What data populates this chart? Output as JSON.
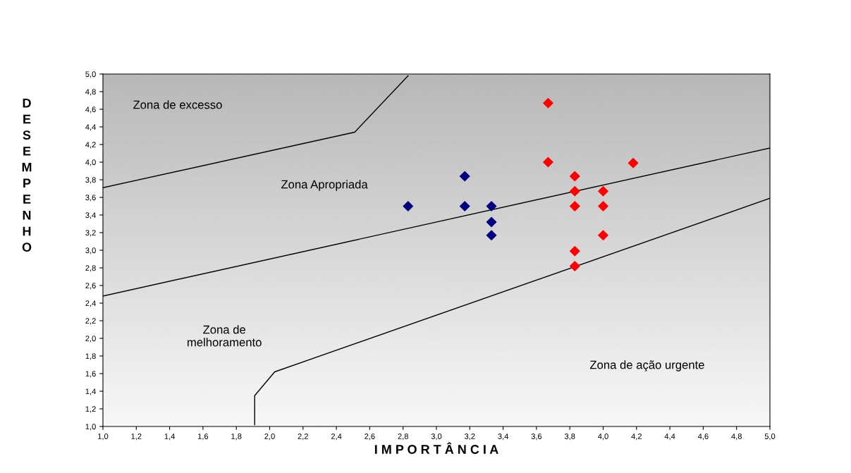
{
  "chart_data": {
    "type": "scatter",
    "xlabel": "I M P O R T Â N C I A",
    "ylabel": "DESEMPENHO",
    "xlim": [
      1.0,
      5.0
    ],
    "ylim": [
      1.0,
      5.0
    ],
    "xticks": [
      {
        "value": 1.0,
        "label": "1,0"
      },
      {
        "value": 1.2,
        "label": "1,2"
      },
      {
        "value": 1.4,
        "label": "1,4"
      },
      {
        "value": 1.6,
        "label": "1,6"
      },
      {
        "value": 1.8,
        "label": "1,8"
      },
      {
        "value": 2.0,
        "label": "2,0"
      },
      {
        "value": 2.2,
        "label": "2,2"
      },
      {
        "value": 2.4,
        "label": "2,4"
      },
      {
        "value": 2.6,
        "label": "2,6"
      },
      {
        "value": 2.8,
        "label": "2,8"
      },
      {
        "value": 3.0,
        "label": "3,0"
      },
      {
        "value": 3.2,
        "label": "3,2"
      },
      {
        "value": 3.4,
        "label": "3,4"
      },
      {
        "value": 3.6,
        "label": "3,6"
      },
      {
        "value": 3.8,
        "label": "3,8"
      },
      {
        "value": 4.0,
        "label": "4,0"
      },
      {
        "value": 4.2,
        "label": "4,2"
      },
      {
        "value": 4.4,
        "label": "4,4"
      },
      {
        "value": 4.6,
        "label": "4,6"
      },
      {
        "value": 4.8,
        "label": "4,8"
      },
      {
        "value": 5.0,
        "label": "5,0"
      }
    ],
    "yticks": [
      {
        "value": 1.0,
        "label": "1,0"
      },
      {
        "value": 1.2,
        "label": "1,2"
      },
      {
        "value": 1.4,
        "label": "1,4"
      },
      {
        "value": 1.6,
        "label": "1,6"
      },
      {
        "value": 1.8,
        "label": "1,8"
      },
      {
        "value": 2.0,
        "label": "2,0"
      },
      {
        "value": 2.2,
        "label": "2,2"
      },
      {
        "value": 2.4,
        "label": "2,4"
      },
      {
        "value": 2.6,
        "label": "2,6"
      },
      {
        "value": 2.8,
        "label": "2,8"
      },
      {
        "value": 3.0,
        "label": "3,0"
      },
      {
        "value": 3.2,
        "label": "3,2"
      },
      {
        "value": 3.4,
        "label": "3,4"
      },
      {
        "value": 3.6,
        "label": "3,6"
      },
      {
        "value": 3.8,
        "label": "3,8"
      },
      {
        "value": 4.0,
        "label": "4,0"
      },
      {
        "value": 4.2,
        "label": "4,2"
      },
      {
        "value": 4.4,
        "label": "4,4"
      },
      {
        "value": 4.6,
        "label": "4,6"
      },
      {
        "value": 4.8,
        "label": "4,8"
      },
      {
        "value": 5.0,
        "label": "5,0"
      }
    ],
    "grid": false,
    "marker": "diamond",
    "series": [
      {
        "color": "#000080",
        "x": [
          2.83,
          3.17,
          3.17,
          3.33,
          3.33,
          3.33
        ],
        "values": [
          3.5,
          3.84,
          3.5,
          3.5,
          3.32,
          3.17
        ]
      },
      {
        "color": "#ff0000",
        "x": [
          3.67,
          3.67,
          3.83,
          3.83,
          3.83,
          3.83,
          3.83,
          4.0,
          4.0,
          4.0,
          4.18
        ],
        "values": [
          4.67,
          4.0,
          3.84,
          3.67,
          3.5,
          2.99,
          2.82,
          3.67,
          3.5,
          3.17,
          3.99
        ]
      },
      {
        "type": "line",
        "color": "#000000",
        "marker": "none",
        "x": [
          1.0,
          2.51,
          2.83
        ],
        "values": [
          3.71,
          4.34,
          4.98
        ]
      },
      {
        "type": "line",
        "color": "#000000",
        "marker": "none",
        "x": [
          1.0,
          5.0
        ],
        "values": [
          2.48,
          4.16
        ]
      },
      {
        "type": "line",
        "color": "#000000",
        "marker": "none",
        "x": [
          1.91,
          1.91,
          2.03,
          5.0
        ],
        "values": [
          1.02,
          1.35,
          1.62,
          3.59
        ]
      }
    ],
    "annotations": [
      "Zona de excesso",
      "Zona Apropriada",
      "Zona de\nmelhoramento",
      "Zona de ação urgente"
    ]
  }
}
